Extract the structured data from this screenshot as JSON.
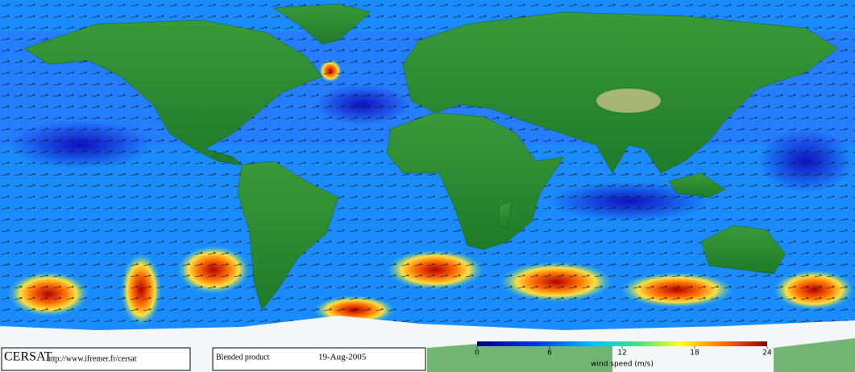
{
  "footer": {
    "logo": "CERSAT",
    "url": "http://www.ifremer.fr/cersat",
    "product": "Blended product",
    "date": "19-Aug-2005"
  },
  "colorbar": {
    "label": "wind speed (m/s)",
    "range": [
      0,
      24
    ],
    "ticks": [
      0,
      6,
      12,
      18,
      24
    ]
  }
}
